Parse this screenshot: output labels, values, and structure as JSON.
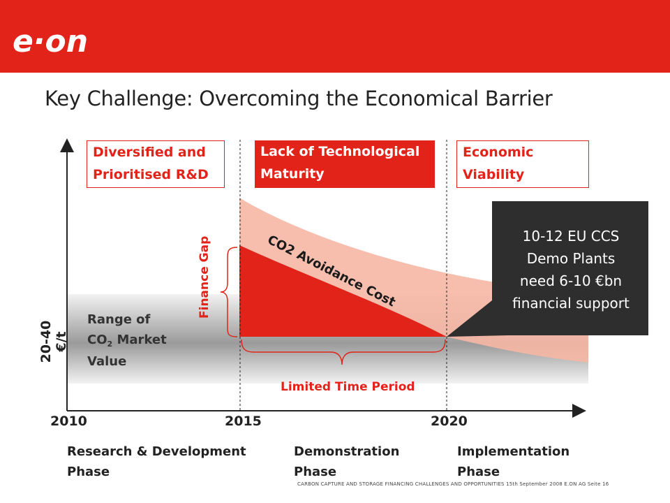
{
  "header": {
    "logo_text": "e·on",
    "title": "Key Challenge: Overcoming the Economical Barrier"
  },
  "diagram": {
    "boxes": [
      {
        "line1": "Diversified and",
        "line2": "Prioritised R&D"
      },
      {
        "line1": "Lack of Technological",
        "line2": "Maturity"
      },
      {
        "line1": "Economic",
        "line2": "Viability"
      }
    ],
    "curve_label": "CO2 Avoidance Cost",
    "finance_gap_label": "Finance Gap",
    "limited_time_label": "Limited Time Period",
    "y_axis_label": "20-40 €/t",
    "range_label": {
      "line1": "Range of",
      "line2_main": "CO",
      "line2_sub": "2",
      "line2_rest": " Market",
      "line3": "Value"
    },
    "callout": {
      "line1": "10-12 EU CCS",
      "line2": "Demo Plants",
      "line3": "need 6-10 €bn",
      "line4": "financial support"
    },
    "years": [
      "2010",
      "2015",
      "2020"
    ],
    "phases": [
      {
        "line1": "Research & Development",
        "line2": "Phase"
      },
      {
        "line1": "Demonstration",
        "line2": "Phase"
      },
      {
        "line1": "Implementation",
        "line2": "Phase"
      }
    ],
    "colors": {
      "accent": "#e2231a",
      "light_band": "#f6b7a5",
      "callout_bg": "#2e2e2e"
    }
  },
  "footer": {
    "text": "CARBON CAPTURE AND STORAGE FINANCING CHALLENGES AND OPPORTUNITIES   15th September 2008   E.ON AG   Seite 16"
  }
}
